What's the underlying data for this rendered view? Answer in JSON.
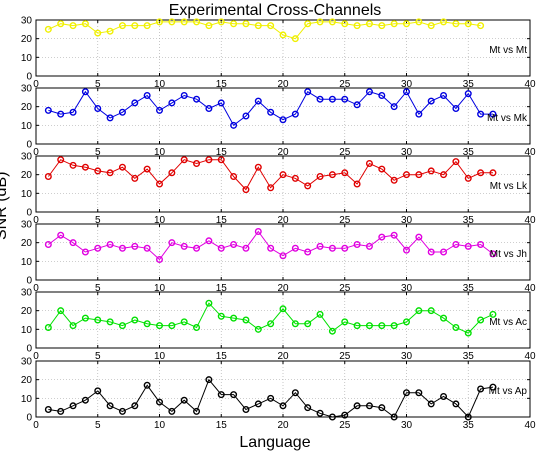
{
  "chart_data": {
    "type": "line",
    "title": "Experimental Cross-Channels",
    "xlabel": "Language",
    "ylabel": "SNR (dB)",
    "xlim": [
      0,
      40
    ],
    "xticks": [
      0,
      5,
      10,
      15,
      20,
      25,
      30,
      35,
      40
    ],
    "ylim": [
      0,
      30
    ],
    "yticks": [
      0,
      10,
      20,
      30
    ],
    "grid": true,
    "marker": "circle",
    "panels": [
      {
        "name": "Mt vs Mt",
        "color": "#f0f000",
        "x": [
          1,
          2,
          3,
          4,
          5,
          6,
          7,
          8,
          9,
          10,
          11,
          12,
          13,
          14,
          15,
          16,
          17,
          18,
          19,
          20,
          21,
          22,
          23,
          24,
          25,
          26,
          27,
          28,
          29,
          30,
          31,
          32,
          33,
          34,
          35,
          36
        ],
        "y": [
          25,
          28,
          27,
          28,
          23,
          24,
          27,
          27,
          27,
          29,
          29,
          29,
          29,
          27,
          29,
          28,
          28,
          27,
          27,
          22,
          20,
          28,
          29,
          29,
          28,
          27,
          28,
          27,
          28,
          28,
          29,
          27,
          29,
          28,
          28,
          27
        ]
      },
      {
        "name": "Mt vs Mk",
        "color": "#0000e0",
        "x": [
          1,
          2,
          3,
          4,
          5,
          6,
          7,
          8,
          9,
          10,
          11,
          12,
          13,
          14,
          15,
          16,
          17,
          18,
          19,
          20,
          21,
          22,
          23,
          24,
          25,
          26,
          27,
          28,
          29,
          30,
          31,
          32,
          33,
          34,
          35,
          36,
          37
        ],
        "y": [
          18,
          16,
          17,
          28,
          19,
          14,
          17,
          22,
          26,
          18,
          22,
          26,
          24,
          19,
          22,
          10,
          15,
          23,
          17,
          13,
          16,
          28,
          24,
          24,
          24,
          21,
          28,
          26,
          20,
          28,
          16,
          23,
          26,
          19,
          27,
          16,
          16
        ]
      },
      {
        "name": "Mt vs Lk",
        "color": "#e00000",
        "x": [
          1,
          2,
          3,
          4,
          5,
          6,
          7,
          8,
          9,
          10,
          11,
          12,
          13,
          14,
          15,
          16,
          17,
          18,
          19,
          20,
          21,
          22,
          23,
          24,
          25,
          26,
          27,
          28,
          29,
          30,
          31,
          32,
          33,
          34,
          35,
          36,
          37
        ],
        "y": [
          19,
          28,
          25,
          24,
          22,
          21,
          24,
          18,
          23,
          15,
          21,
          28,
          26,
          28,
          28,
          19,
          12,
          24,
          13,
          20,
          18,
          14,
          19,
          20,
          21,
          15,
          26,
          23,
          17,
          20,
          20,
          22,
          20,
          27,
          18,
          21,
          21
        ]
      },
      {
        "name": "Mt vs Jh",
        "color": "#e000e0",
        "x": [
          1,
          2,
          3,
          4,
          5,
          6,
          7,
          8,
          9,
          10,
          11,
          12,
          13,
          14,
          15,
          16,
          17,
          18,
          19,
          20,
          21,
          22,
          23,
          24,
          25,
          26,
          27,
          28,
          29,
          30,
          31,
          32,
          33,
          34,
          35,
          36,
          37
        ],
        "y": [
          19,
          24,
          20,
          15,
          17,
          19,
          17,
          18,
          17,
          11,
          20,
          18,
          17,
          21,
          17,
          19,
          17,
          26,
          17,
          13,
          17,
          15,
          18,
          17,
          17,
          19,
          18,
          23,
          24,
          16,
          23,
          15,
          15,
          19,
          18,
          19,
          14
        ]
      },
      {
        "name": "Mt vs Ac",
        "color": "#00e000",
        "x": [
          1,
          2,
          3,
          4,
          5,
          6,
          7,
          8,
          9,
          10,
          11,
          12,
          13,
          14,
          15,
          16,
          17,
          18,
          19,
          20,
          21,
          22,
          23,
          24,
          25,
          26,
          27,
          28,
          29,
          30,
          31,
          32,
          33,
          34,
          35,
          36,
          37
        ],
        "y": [
          11,
          20,
          12,
          16,
          15,
          14,
          12,
          15,
          13,
          12,
          12,
          14,
          11,
          24,
          17,
          16,
          15,
          10,
          13,
          21,
          13,
          13,
          18,
          9,
          14,
          12,
          12,
          12,
          12,
          14,
          20,
          20,
          16,
          11,
          8,
          15,
          18
        ]
      },
      {
        "name": "Mt vs Ap",
        "color": "#000000",
        "x": [
          1,
          2,
          3,
          4,
          5,
          6,
          7,
          8,
          9,
          10,
          11,
          12,
          13,
          14,
          15,
          16,
          17,
          18,
          19,
          20,
          21,
          22,
          23,
          24,
          25,
          26,
          27,
          28,
          29,
          30,
          31,
          32,
          33,
          34,
          35,
          36,
          37
        ],
        "y": [
          4,
          3,
          6,
          9,
          14,
          6,
          3,
          6,
          17,
          8,
          3,
          9,
          3,
          20,
          12,
          12,
          4,
          7,
          10,
          6,
          13,
          5,
          2,
          0,
          1,
          6,
          6,
          5,
          0,
          13,
          13,
          7,
          11,
          7,
          0,
          15,
          16
        ]
      }
    ]
  }
}
